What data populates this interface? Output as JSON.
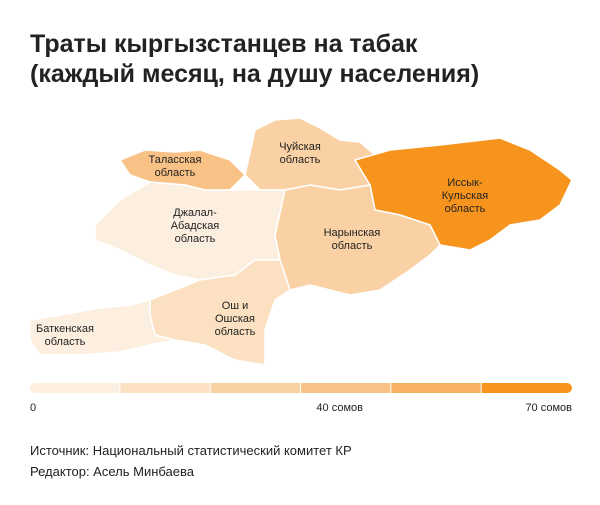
{
  "chart_data": {
    "type": "choropleth",
    "title": "Траты кыргызстанцев на табак\n(каждый месяц, на душу населения)",
    "regions": [
      {
        "name": "Таласская\nобласть",
        "value": 36
      },
      {
        "name": "Чуйская\nобласть",
        "value": 25
      },
      {
        "name": "Иссык-\nКульская\nобласть",
        "value": 68
      },
      {
        "name": "Нарынская\nобласть",
        "value": 28
      },
      {
        "name": "Джалал-\nАбадская\nобласть",
        "value": 8
      },
      {
        "name": "Ош и\nОшская\nобласть",
        "value": 18
      },
      {
        "name": "Баткенская\nобласть",
        "value": 10
      }
    ],
    "legend": {
      "lim": [
        0,
        70
      ],
      "ticks": [
        0,
        {
          "value": 40,
          "label": "40 сомов"
        },
        {
          "value": 70,
          "label": "70 сомов"
        }
      ],
      "colors": [
        "#fcefe0",
        "#fbe0c2",
        "#f9d1a4",
        "#f8c185",
        "#f8b062",
        "#f7941d"
      ]
    },
    "source": "Источник: Национальный статистический комитет КР",
    "editor": "Редактор: Асель Минбаева"
  }
}
